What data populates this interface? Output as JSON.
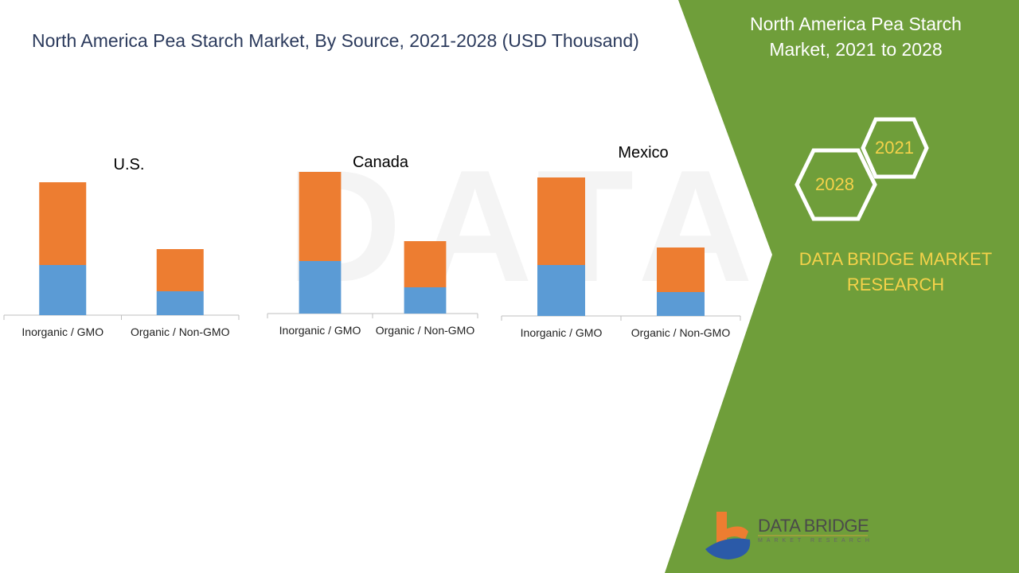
{
  "title": "North America Pea Starch Market, By Source, 2021-2028 (USD Thousand)",
  "side": {
    "title_line1": "North America Pea Starch",
    "title_line2": "Market, 2021 to 2028",
    "hex_a": "2021",
    "hex_b": "2028",
    "brand_line1": "DATA BRIDGE MARKET",
    "brand_line2": "RESEARCH",
    "logo_text": "DATA BRIDGE",
    "logo_sub": "MARKET RESEARCH"
  },
  "colors": {
    "series1": "#5b9bd5",
    "series2": "#ed7d31",
    "panel": "#6f9e3a",
    "hex_text": "#f5d24a"
  },
  "chart_data": [
    {
      "type": "bar",
      "stacked": true,
      "title": "U.S.",
      "categories": [
        "Inorganic / GMO",
        "Organic / Non-GMO"
      ],
      "series": [
        {
          "values": [
            63,
            30
          ]
        },
        {
          "values": [
            104,
            53
          ]
        }
      ],
      "ylim": [
        0,
        180
      ],
      "grid": false
    },
    {
      "type": "bar",
      "stacked": true,
      "title": "Canada",
      "categories": [
        "Inorganic / GMO",
        "Organic / Non-GMO"
      ],
      "series": [
        {
          "values": [
            66,
            33
          ]
        },
        {
          "values": [
            112,
            58
          ]
        }
      ],
      "ylim": [
        0,
        180
      ],
      "grid": false
    },
    {
      "type": "bar",
      "stacked": true,
      "title": "Mexico",
      "categories": [
        "Inorganic / GMO",
        "Organic / Non-GMO"
      ],
      "series": [
        {
          "values": [
            64,
            30
          ]
        },
        {
          "values": [
            110,
            56
          ]
        }
      ],
      "ylim": [
        0,
        180
      ],
      "grid": false
    }
  ]
}
